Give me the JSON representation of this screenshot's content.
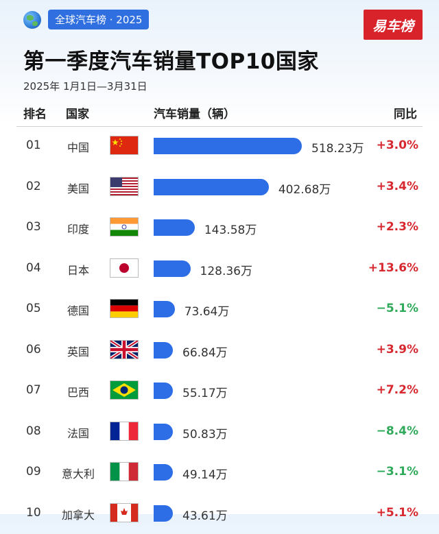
{
  "tagline": "全球汽车榜 · 2025",
  "brand": "易车榜",
  "title": "第一季度汽车销量TOP10国家",
  "date_range": "2025年 1月1日—3月31日",
  "headers": {
    "rank": "排名",
    "country": "国家",
    "sales": "汽车销量（辆）",
    "yoy": "同比"
  },
  "colors": {
    "bar": "#2d6ee6",
    "up": "#d7282f",
    "down": "#2faa5a"
  },
  "chart_data": {
    "type": "bar",
    "orientation": "horizontal",
    "unit": "万",
    "rows": [
      {
        "rank": "01",
        "country": "中国",
        "flag": "china-flag",
        "value": 518.23,
        "label": "518.23万",
        "yoy": "+3.0%",
        "dir": "up"
      },
      {
        "rank": "02",
        "country": "美国",
        "flag": "usa-flag",
        "value": 402.68,
        "label": "402.68万",
        "yoy": "+3.4%",
        "dir": "up"
      },
      {
        "rank": "03",
        "country": "印度",
        "flag": "india-flag",
        "value": 143.58,
        "label": "143.58万",
        "yoy": "+2.3%",
        "dir": "up"
      },
      {
        "rank": "04",
        "country": "日本",
        "flag": "japan-flag",
        "value": 128.36,
        "label": "128.36万",
        "yoy": "+13.6%",
        "dir": "up"
      },
      {
        "rank": "05",
        "country": "德国",
        "flag": "germany-flag",
        "value": 73.64,
        "label": "73.64万",
        "yoy": "−5.1%",
        "dir": "down"
      },
      {
        "rank": "06",
        "country": "英国",
        "flag": "uk-flag",
        "value": 66.84,
        "label": "66.84万",
        "yoy": "+3.9%",
        "dir": "up"
      },
      {
        "rank": "07",
        "country": "巴西",
        "flag": "brazil-flag",
        "value": 55.17,
        "label": "55.17万",
        "yoy": "+7.2%",
        "dir": "up"
      },
      {
        "rank": "08",
        "country": "法国",
        "flag": "france-flag",
        "value": 50.83,
        "label": "50.83万",
        "yoy": "−8.4%",
        "dir": "down"
      },
      {
        "rank": "09",
        "country": "意大利",
        "flag": "italy-flag",
        "value": 49.14,
        "label": "49.14万",
        "yoy": "−3.1%",
        "dir": "down"
      },
      {
        "rank": "10",
        "country": "加拿大",
        "flag": "canada-flag",
        "value": 43.61,
        "label": "43.61万",
        "yoy": "+5.1%",
        "dir": "up"
      }
    ]
  }
}
